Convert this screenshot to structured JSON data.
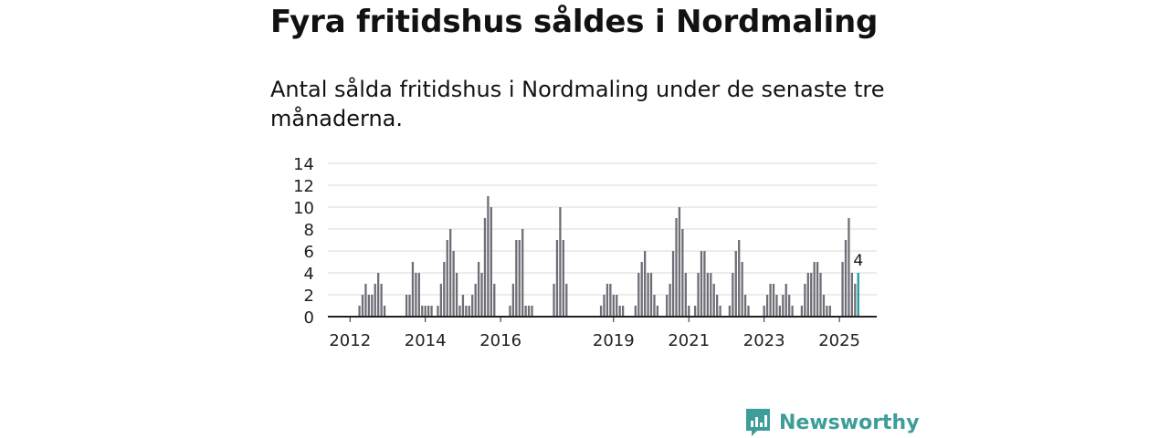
{
  "chart_data": {
    "type": "bar",
    "title": "Fyra fritidshus såldes i Nordmaling",
    "subtitle": "Antal sålda fritidshus i Nordmaling under de senaste tre månaderna.",
    "xlabel": "",
    "ylabel": "",
    "ylim": [
      0,
      14
    ],
    "yticks": [
      "0",
      "2",
      "4",
      "6",
      "8",
      "10",
      "12",
      "14"
    ],
    "start": "2012-01",
    "xticks": [
      {
        "label": "2012",
        "index": 6
      },
      {
        "label": "2014",
        "index": 30
      },
      {
        "label": "2016",
        "index": 54
      },
      {
        "label": "2019",
        "index": 90
      },
      {
        "label": "2021",
        "index": 114
      },
      {
        "label": "2023",
        "index": 138
      },
      {
        "label": "2025",
        "index": 162
      }
    ],
    "values": [
      0,
      0,
      0,
      0,
      0,
      0,
      0,
      0,
      0,
      1,
      2,
      3,
      2,
      2,
      3,
      4,
      3,
      1,
      0,
      0,
      0,
      0,
      0,
      0,
      2,
      2,
      5,
      4,
      4,
      1,
      1,
      1,
      1,
      0,
      1,
      3,
      5,
      7,
      8,
      6,
      4,
      1,
      2,
      1,
      1,
      2,
      3,
      5,
      4,
      9,
      11,
      10,
      3,
      0,
      0,
      0,
      0,
      1,
      3,
      7,
      7,
      8,
      1,
      1,
      1,
      0,
      0,
      0,
      0,
      0,
      0,
      3,
      7,
      10,
      7,
      3,
      0,
      0,
      0,
      0,
      0,
      0,
      0,
      0,
      0,
      0,
      1,
      2,
      3,
      3,
      2,
      2,
      1,
      1,
      0,
      0,
      0,
      1,
      4,
      5,
      6,
      4,
      4,
      2,
      1,
      0,
      0,
      2,
      3,
      6,
      9,
      10,
      8,
      4,
      1,
      0,
      1,
      4,
      6,
      6,
      4,
      4,
      3,
      2,
      1,
      0,
      0,
      1,
      4,
      6,
      7,
      5,
      2,
      1,
      0,
      0,
      0,
      0,
      1,
      2,
      3,
      3,
      2,
      1,
      2,
      3,
      2,
      1,
      0,
      0,
      1,
      3,
      4,
      4,
      5,
      5,
      4,
      2,
      1,
      1,
      0,
      0,
      0,
      5,
      7,
      9,
      4,
      3,
      4
    ],
    "highlight": {
      "label": "4",
      "color": "#1b9c9b"
    },
    "colors": {
      "bar": "#6f6e77",
      "highlight": "#1b9c9b",
      "grid": "#d8d8d8",
      "axis": "#222222"
    }
  },
  "brand": {
    "name": "Newsworthy",
    "icon": "newsworthy-logo-icon",
    "color": "#3c9d99"
  }
}
